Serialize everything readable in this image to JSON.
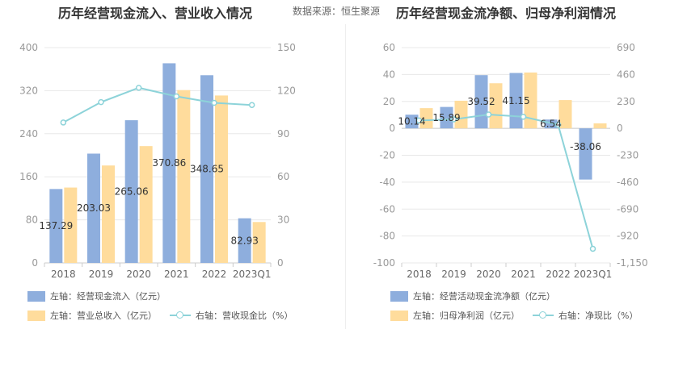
{
  "titles": {
    "left": "历年经营现金流入、营业收入情况",
    "source": "数据来源：恒生聚源",
    "right": "历年经营现金流净额、归母净利润情况"
  },
  "colors": {
    "blue": "#8eaedd",
    "yellow": "#ffdc9c",
    "line": "#8dd3d9",
    "grid": "#e8e8e8",
    "axis": "#999999"
  },
  "legend": {
    "left": [
      "左轴：经营现金流入（亿元）",
      "左轴：营业总收入（亿元）",
      "右轴：营收现金比（%）"
    ],
    "right": [
      "左轴：经营活动现金流净额（亿元）",
      "左轴：归母净利润（亿元）",
      "右轴：净现比（%）"
    ]
  },
  "chart_data": [
    {
      "type": "bar",
      "categories": [
        "2018",
        "2019",
        "2020",
        "2021",
        "2022",
        "2023Q1"
      ],
      "y_left": {
        "ticks": [
          "0",
          "80",
          "160",
          "240",
          "320",
          "400"
        ],
        "range": [
          0,
          400
        ]
      },
      "y_right": {
        "ticks": [
          "0",
          "30",
          "60",
          "90",
          "120",
          "150"
        ],
        "range": [
          0,
          150
        ]
      },
      "series": [
        {
          "name": "左轴：经营现金流入（亿元）",
          "axis": "left",
          "kind": "bar",
          "values": [
            137.29,
            203.03,
            265.06,
            370.86,
            348.65,
            82.93
          ],
          "labels": [
            "137.29",
            "203.03",
            "265.06",
            "370.86",
            "348.65",
            "82.93"
          ]
        },
        {
          "name": "左轴：营业总收入（亿元）",
          "axis": "left",
          "kind": "bar",
          "values": [
            140,
            181,
            217,
            321,
            311,
            76
          ]
        },
        {
          "name": "右轴：营收现金比（%）",
          "axis": "right",
          "kind": "line",
          "values": [
            97.8,
            112,
            122,
            116,
            111.5,
            110
          ]
        }
      ]
    },
    {
      "type": "bar",
      "categories": [
        "2018",
        "2019",
        "2020",
        "2021",
        "2022",
        "2023Q1"
      ],
      "y_left": {
        "ticks": [
          "-100",
          "-80",
          "-60",
          "-40",
          "-20",
          "0",
          "20",
          "40",
          "60"
        ],
        "range": [
          -100,
          60
        ]
      },
      "y_right": {
        "ticks": [
          "-1,150",
          "-920",
          "-690",
          "-460",
          "-230",
          "0",
          "230",
          "460",
          "690"
        ],
        "range": [
          -1150,
          690
        ]
      },
      "series": [
        {
          "name": "左轴：经营活动现金流净额（亿元）",
          "axis": "left",
          "kind": "bar",
          "values": [
            10.14,
            15.89,
            39.52,
            41.15,
            6.54,
            -38.06
          ],
          "labels": [
            "10.14",
            "15.89",
            "39.52",
            "41.15",
            "6.54",
            "-38.06"
          ]
        },
        {
          "name": "左轴：归母净利润（亿元）",
          "axis": "left",
          "kind": "bar",
          "values": [
            15,
            20.5,
            33.5,
            41.5,
            21,
            3.7
          ]
        },
        {
          "name": "右轴：净现比（%）",
          "axis": "right",
          "kind": "line",
          "values": [
            67,
            77,
            118,
            99,
            31,
            -1029
          ]
        }
      ]
    }
  ]
}
